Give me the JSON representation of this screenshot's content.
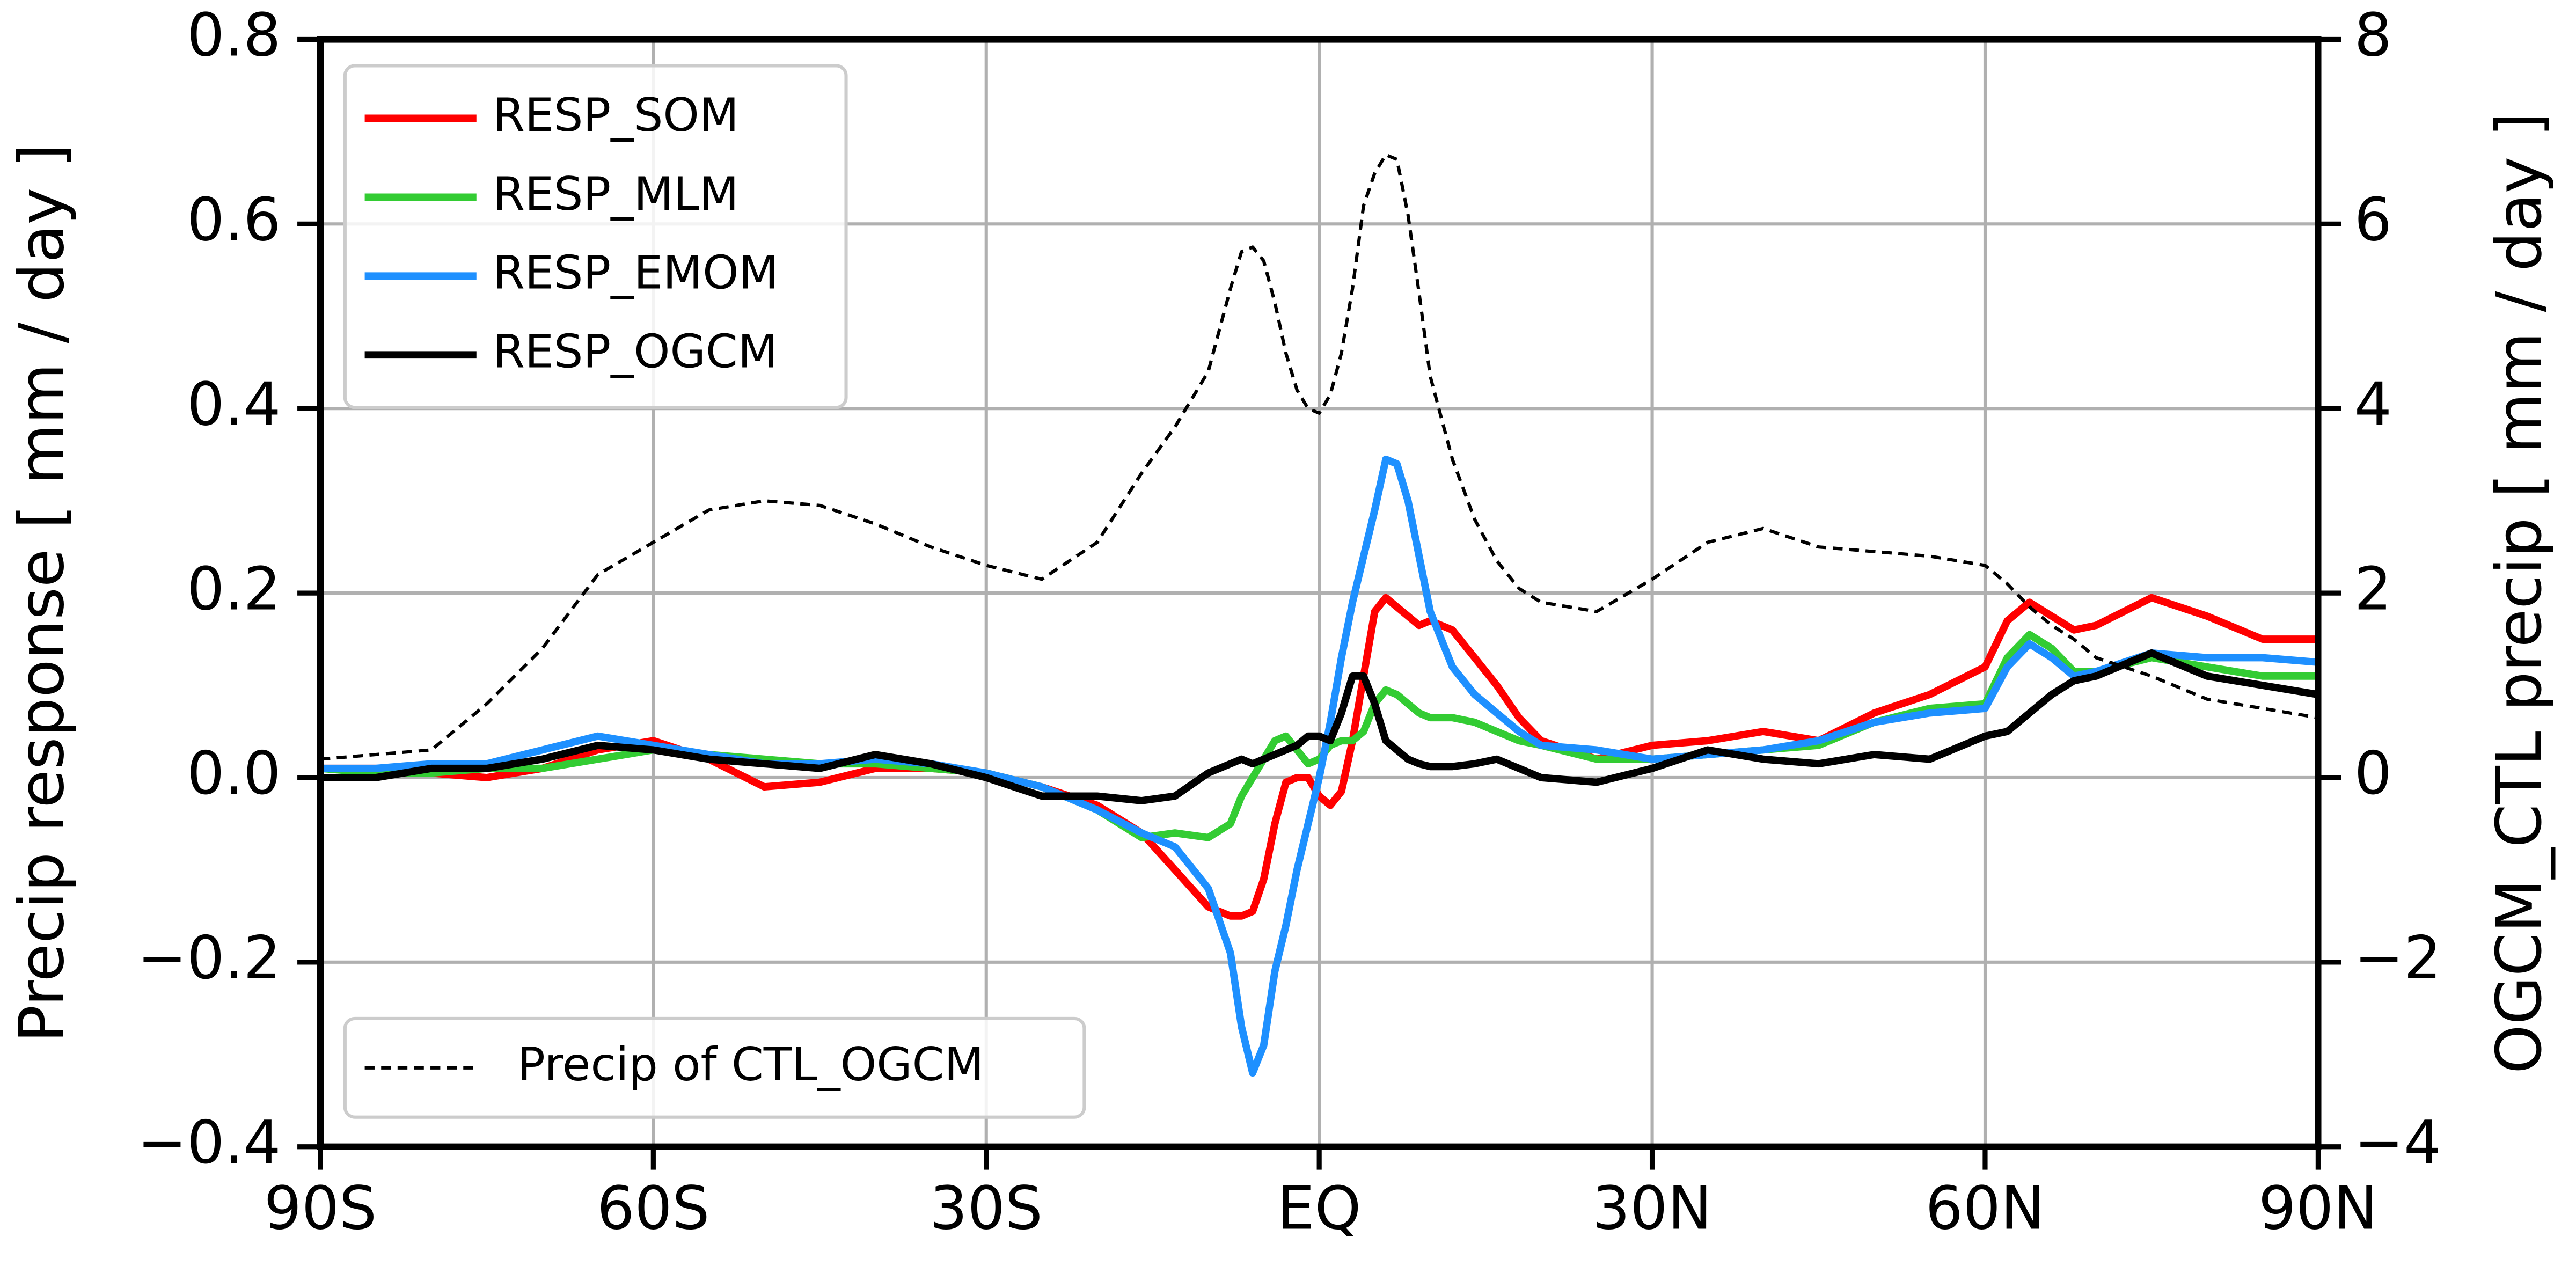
{
  "chart_data": {
    "type": "line",
    "ylabel": "Precip response [ mm / day ]",
    "y2label": "OGCM_CTL precip [ mm / day ]",
    "grid": true,
    "legend": "upper left",
    "xlim": [
      -90,
      90
    ],
    "xticks": [
      {
        "value": -90,
        "label": "90S"
      },
      {
        "value": -60,
        "label": "60S"
      },
      {
        "value": -30,
        "label": "30S"
      },
      {
        "value": 0,
        "label": "EQ"
      },
      {
        "value": 30,
        "label": "30N"
      },
      {
        "value": 60,
        "label": "60N"
      },
      {
        "value": 90,
        "label": "90N"
      }
    ],
    "ylim": [
      -0.4,
      0.8
    ],
    "yticks": [
      {
        "value": -0.4,
        "label": "−0.4"
      },
      {
        "value": -0.2,
        "label": "−0.2"
      },
      {
        "value": 0,
        "label": "0.0"
      },
      0.2,
      0.4,
      0.6,
      0.8
    ],
    "y2lim": [
      -4,
      8
    ],
    "y2ticks": [
      {
        "value": -4,
        "label": "−4"
      },
      {
        "value": -2,
        "label": "−2"
      },
      0,
      2,
      4,
      6,
      8
    ],
    "x": [
      -90,
      -85,
      -80,
      -75,
      -70,
      -65,
      -60,
      -55,
      -50,
      -45,
      -40,
      -35,
      -30,
      -25,
      -20,
      -16,
      -13,
      -10,
      -8,
      -7,
      -6,
      -5,
      -4,
      -3,
      -2,
      -1,
      0,
      1,
      2,
      3,
      4,
      5,
      6,
      7,
      8,
      9,
      10,
      12,
      14,
      16,
      18,
      20,
      25,
      30,
      35,
      40,
      45,
      50,
      55,
      60,
      62,
      64,
      66,
      68,
      70,
      75,
      80,
      85,
      90
    ],
    "series": [
      {
        "name": "RESP_SOM",
        "color": "#ff0000",
        "values": [
          0.01,
          0.01,
          0.005,
          0,
          0.01,
          0.03,
          0.04,
          0.02,
          -0.01,
          -0.005,
          0.01,
          0.01,
          0.005,
          -0.01,
          -0.03,
          -0.06,
          -0.1,
          -0.14,
          -0.15,
          -0.15,
          -0.145,
          -0.11,
          -0.05,
          -0.005,
          0,
          0,
          -0.02,
          -0.03,
          -0.015,
          0.04,
          0.11,
          0.18,
          0.195,
          0.185,
          0.175,
          0.165,
          0.17,
          0.16,
          0.13,
          0.1,
          0.065,
          0.04,
          0.02,
          0.035,
          0.04,
          0.05,
          0.04,
          0.07,
          0.09,
          0.12,
          0.17,
          0.19,
          0.175,
          0.16,
          0.165,
          0.195,
          0.175,
          0.15,
          0.15
        ]
      },
      {
        "name": "RESP_MLM",
        "color": "#33cc33",
        "values": [
          0.01,
          0.005,
          0.005,
          0.01,
          0.01,
          0.02,
          0.03,
          0.025,
          0.02,
          0.015,
          0.015,
          0.01,
          0.005,
          -0.01,
          -0.035,
          -0.065,
          -0.06,
          -0.065,
          -0.05,
          -0.02,
          0,
          0.02,
          0.04,
          0.045,
          0.03,
          0.015,
          0.02,
          0.035,
          0.04,
          0.04,
          0.05,
          0.08,
          0.095,
          0.09,
          0.08,
          0.07,
          0.065,
          0.065,
          0.06,
          0.05,
          0.04,
          0.035,
          0.02,
          0.02,
          0.025,
          0.03,
          0.035,
          0.06,
          0.075,
          0.08,
          0.13,
          0.155,
          0.14,
          0.115,
          0.115,
          0.13,
          0.12,
          0.11,
          0.11
        ]
      },
      {
        "name": "RESP_EMOM",
        "color": "#1e90ff",
        "values": [
          0.01,
          0.01,
          0.015,
          0.015,
          0.03,
          0.045,
          0.035,
          0.025,
          0.015,
          0.015,
          0.02,
          0.015,
          0.005,
          -0.01,
          -0.035,
          -0.06,
          -0.075,
          -0.12,
          -0.19,
          -0.27,
          -0.32,
          -0.29,
          -0.21,
          -0.16,
          -0.1,
          -0.05,
          0,
          0.06,
          0.13,
          0.19,
          0.24,
          0.29,
          0.345,
          0.34,
          0.3,
          0.24,
          0.18,
          0.12,
          0.09,
          0.07,
          0.05,
          0.035,
          0.03,
          0.02,
          0.025,
          0.03,
          0.04,
          0.06,
          0.07,
          0.075,
          0.12,
          0.145,
          0.13,
          0.11,
          0.115,
          0.135,
          0.13,
          0.13,
          0.125
        ]
      },
      {
        "name": "RESP_OGCM",
        "color": "#000000",
        "values": [
          0,
          0,
          0.01,
          0.01,
          0.02,
          0.035,
          0.03,
          0.02,
          0.015,
          0.01,
          0.025,
          0.015,
          0,
          -0.02,
          -0.02,
          -0.025,
          -0.02,
          0.005,
          0.015,
          0.02,
          0.015,
          0.02,
          0.025,
          0.03,
          0.035,
          0.045,
          0.045,
          0.04,
          0.07,
          0.11,
          0.11,
          0.08,
          0.04,
          0.03,
          0.02,
          0.015,
          0.012,
          0.012,
          0.015,
          0.02,
          0.01,
          0,
          -0.005,
          0.01,
          0.03,
          0.02,
          0.015,
          0.025,
          0.02,
          0.045,
          0.05,
          0.07,
          0.09,
          0.105,
          0.11,
          0.135,
          0.11,
          0.1,
          0.09
        ]
      },
      {
        "name": "Precip of CTL_OGCM",
        "color": "#000000",
        "linestyle": "dashed",
        "axis": "y2",
        "values": [
          0.2,
          0.25,
          0.3,
          0.8,
          1.4,
          2.2,
          2.55,
          2.9,
          3.0,
          2.95,
          2.75,
          2.5,
          2.3,
          2.15,
          2.55,
          3.3,
          3.8,
          4.4,
          5.3,
          5.7,
          5.75,
          5.6,
          5.15,
          4.6,
          4.2,
          4.0,
          3.95,
          4.15,
          4.6,
          5.3,
          6.2,
          6.55,
          6.75,
          6.7,
          6.1,
          5.25,
          4.35,
          3.45,
          2.8,
          2.35,
          2.05,
          1.9,
          1.8,
          2.15,
          2.55,
          2.7,
          2.5,
          2.45,
          2.4,
          2.3,
          2.1,
          1.85,
          1.65,
          1.5,
          1.3,
          1.1,
          0.85,
          0.75,
          0.65
        ]
      }
    ]
  }
}
